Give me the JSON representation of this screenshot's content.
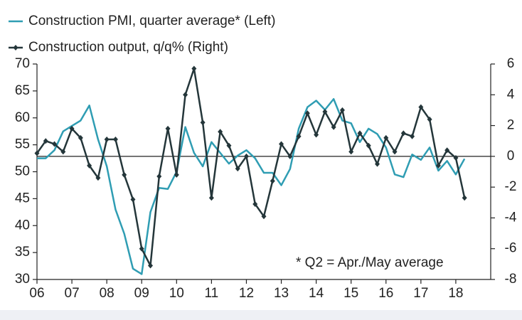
{
  "chart_data": {
    "type": "line",
    "annotation": "* Q2 = Apr./May average",
    "x": [
      2006,
      2006.25,
      2006.5,
      2006.75,
      2007,
      2007.25,
      2007.5,
      2007.75,
      2008,
      2008.25,
      2008.5,
      2008.75,
      2009,
      2009.25,
      2009.5,
      2009.75,
      2010,
      2010.25,
      2010.5,
      2010.75,
      2011,
      2011.25,
      2011.5,
      2011.75,
      2012,
      2012.25,
      2012.5,
      2012.75,
      2013,
      2013.25,
      2013.5,
      2013.75,
      2014,
      2014.25,
      2014.5,
      2014.75,
      2015,
      2015.25,
      2015.5,
      2015.75,
      2016,
      2016.25,
      2016.5,
      2016.75,
      2017,
      2017.25,
      2017.5,
      2017.75,
      2018,
      2018.25
    ],
    "series": [
      {
        "name": "Construction PMI, quarter average* (Left)",
        "color": "#2f9db3",
        "axis": "y",
        "values": [
          52.5,
          52.5,
          54,
          57.5,
          58.5,
          59.5,
          62.3,
          56,
          51,
          43,
          38.5,
          32,
          31,
          42.5,
          47,
          46.8,
          50,
          58.3,
          53.5,
          51,
          55.5,
          53.5,
          51.5,
          53,
          54,
          52.5,
          49.8,
          49.8,
          47.5,
          50.5,
          58,
          62,
          63.2,
          61.5,
          63.5,
          59.5,
          59,
          55.5,
          58,
          57,
          54.5,
          49.5,
          49,
          53.2,
          52.2,
          54.5,
          50.2,
          52,
          49.5,
          52.4
        ]
      },
      {
        "name": "Construction output, q/q% (Right)",
        "color": "#24363a",
        "axis": "y2",
        "values": [
          0.2,
          1.0,
          0.8,
          0.3,
          1.8,
          1.2,
          -0.6,
          -1.4,
          1.1,
          1.1,
          -1.2,
          -2.8,
          -6,
          -7.1,
          -1.3,
          1.8,
          -1.2,
          4,
          5.7,
          2.2,
          -2.7,
          1.6,
          0.7,
          -0.8,
          0,
          -3.1,
          -3.9,
          -1.6,
          0.8,
          0,
          1.3,
          2.8,
          1.4,
          2.9,
          1.9,
          3,
          0.3,
          1.5,
          0.7,
          -0.5,
          1.2,
          0.3,
          1.5,
          1.3,
          3.2,
          2.4,
          -0.6,
          0.4,
          -0.1,
          -2.7
        ]
      }
    ],
    "xlim": [
      2006,
      2019
    ],
    "xticks": [
      {
        "value": 2006,
        "label": "06"
      },
      {
        "value": 2007,
        "label": "07"
      },
      {
        "value": 2008,
        "label": "08"
      },
      {
        "value": 2009,
        "label": "09"
      },
      {
        "value": 2010,
        "label": "10"
      },
      {
        "value": 2011,
        "label": "11"
      },
      {
        "value": 2012,
        "label": "12"
      },
      {
        "value": 2013,
        "label": "13"
      },
      {
        "value": 2014,
        "label": "14"
      },
      {
        "value": 2015,
        "label": "15"
      },
      {
        "value": 2016,
        "label": "16"
      },
      {
        "value": 2017,
        "label": "17"
      },
      {
        "value": 2018,
        "label": "18"
      }
    ],
    "ylim": [
      30,
      70
    ],
    "yticks": [
      30,
      35,
      40,
      45,
      50,
      55,
      60,
      65,
      70
    ],
    "y2lim": [
      -8,
      6
    ],
    "y2ticks": [
      -8,
      -6,
      -4,
      -2,
      0,
      2,
      4,
      6
    ],
    "grid": false
  }
}
